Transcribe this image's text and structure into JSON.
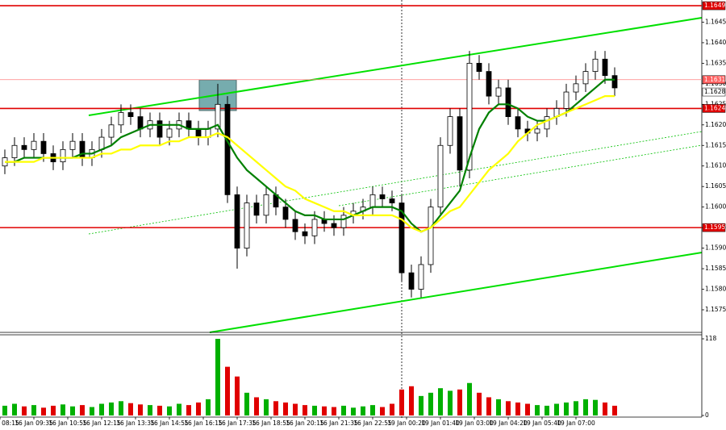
{
  "chart_data": {
    "type": "candlestick",
    "open": [
      1.161,
      1.1612,
      1.1615,
      1.1614,
      1.1616,
      1.1613,
      1.1611,
      1.1614,
      1.1616,
      1.1612,
      1.1614,
      1.1617,
      1.162,
      1.1623,
      1.1622,
      1.1619,
      1.1621,
      1.1617,
      1.1619,
      1.1621,
      1.1619,
      1.1617,
      1.1619,
      1.1625,
      1.1603,
      1.159,
      1.1601,
      1.1598,
      1.1603,
      1.16,
      1.1597,
      1.1594,
      1.1593,
      1.1597,
      1.1596,
      1.1595,
      1.1598,
      1.1599,
      1.16,
      1.1603,
      1.1602,
      1.1601,
      1.1584,
      1.158,
      1.1586,
      1.16,
      1.1615,
      1.1622,
      1.1609,
      1.1635,
      1.1633,
      1.1627,
      1.1629,
      1.1622,
      1.1619,
      1.1618,
      1.1619,
      1.1622,
      1.1624,
      1.1628,
      1.163,
      1.1633,
      1.1636,
      1.1632
    ],
    "high": [
      1.1614,
      1.1617,
      1.1617,
      1.1618,
      1.1618,
      1.1615,
      1.1616,
      1.1618,
      1.1618,
      1.1616,
      1.1619,
      1.1622,
      1.1625,
      1.1625,
      1.1624,
      1.1623,
      1.1623,
      1.1621,
      1.1623,
      1.1623,
      1.1621,
      1.1621,
      1.163,
      1.1627,
      1.1605,
      1.1603,
      1.1603,
      1.1605,
      1.1605,
      1.1602,
      1.1599,
      1.1596,
      1.1599,
      1.1599,
      1.1598,
      1.16,
      1.1601,
      1.1602,
      1.1605,
      1.1605,
      1.1604,
      1.1603,
      1.1586,
      1.1588,
      1.1602,
      1.1617,
      1.1624,
      1.1624,
      1.1638,
      1.1637,
      1.1635,
      1.1631,
      1.1631,
      1.1624,
      1.1621,
      1.1621,
      1.1624,
      1.1626,
      1.163,
      1.1632,
      1.1635,
      1.1638,
      1.1638,
      1.1634
    ],
    "low": [
      1.1608,
      1.161,
      1.1612,
      1.1612,
      1.1611,
      1.1609,
      1.1609,
      1.1612,
      1.161,
      1.161,
      1.1612,
      1.1615,
      1.1618,
      1.162,
      1.1617,
      1.1617,
      1.1615,
      1.1615,
      1.1617,
      1.1617,
      1.1615,
      1.1615,
      1.1617,
      1.1601,
      1.1585,
      1.1588,
      1.1596,
      1.1596,
      1.1598,
      1.1595,
      1.1592,
      1.1591,
      1.1591,
      1.1594,
      1.1593,
      1.1593,
      1.1596,
      1.1597,
      1.1598,
      1.16,
      1.1599,
      1.1582,
      1.1578,
      1.1578,
      1.1584,
      1.1598,
      1.1613,
      1.1605,
      1.1607,
      1.1631,
      1.1625,
      1.1625,
      1.162,
      1.1617,
      1.1616,
      1.1616,
      1.1617,
      1.162,
      1.1622,
      1.1626,
      1.1628,
      1.1631,
      1.163,
      1.1627
    ],
    "close": [
      1.1612,
      1.1615,
      1.1614,
      1.1616,
      1.1613,
      1.1611,
      1.1614,
      1.1616,
      1.1612,
      1.1614,
      1.1617,
      1.162,
      1.1623,
      1.1622,
      1.1619,
      1.1621,
      1.1617,
      1.1619,
      1.1621,
      1.1619,
      1.1617,
      1.1619,
      1.1625,
      1.1603,
      1.159,
      1.1601,
      1.1598,
      1.1603,
      1.16,
      1.1597,
      1.1594,
      1.1593,
      1.1597,
      1.1596,
      1.1595,
      1.1598,
      1.1599,
      1.16,
      1.1603,
      1.1602,
      1.1601,
      1.1584,
      1.158,
      1.1586,
      1.16,
      1.1615,
      1.1622,
      1.1609,
      1.1635,
      1.1633,
      1.1627,
      1.1629,
      1.1622,
      1.1619,
      1.1618,
      1.1619,
      1.1622,
      1.1624,
      1.1628,
      1.163,
      1.1633,
      1.1636,
      1.1632,
      1.1629
    ],
    "moving_averages": [
      {
        "color": "#008000",
        "values": [
          1.1611,
          1.1611,
          1.1612,
          1.1612,
          1.1612,
          1.1612,
          1.1612,
          1.1612,
          1.1613,
          1.1613,
          1.1614,
          1.1615,
          1.1617,
          1.1618,
          1.1619,
          1.162,
          1.162,
          1.162,
          1.162,
          1.1619,
          1.1619,
          1.1619,
          1.162,
          1.1616,
          1.1612,
          1.1609,
          1.1607,
          1.1605,
          1.1603,
          1.1601,
          1.1599,
          1.1598,
          1.1598,
          1.1597,
          1.1597,
          1.1597,
          1.1598,
          1.1599,
          1.16,
          1.16,
          1.16,
          1.1599,
          1.1596,
          1.1594,
          1.1595,
          1.1598,
          1.1601,
          1.1604,
          1.1612,
          1.1619,
          1.1623,
          1.1625,
          1.1625,
          1.1624,
          1.1622,
          1.1621,
          1.1621,
          1.1622,
          1.1623,
          1.1625,
          1.1627,
          1.1629,
          1.1631,
          1.1631
        ]
      },
      {
        "color": "#ffff00",
        "values": [
          1.1611,
          1.1611,
          1.1611,
          1.1611,
          1.1612,
          1.1612,
          1.1612,
          1.1612,
          1.1612,
          1.1612,
          1.1613,
          1.1613,
          1.1614,
          1.1614,
          1.1615,
          1.1615,
          1.1615,
          1.1616,
          1.1616,
          1.1617,
          1.1617,
          1.1617,
          1.1618,
          1.1617,
          1.1615,
          1.1613,
          1.1611,
          1.1609,
          1.1607,
          1.1605,
          1.1604,
          1.1602,
          1.1601,
          1.16,
          1.1599,
          1.1599,
          1.1598,
          1.1598,
          1.1598,
          1.1598,
          1.1598,
          1.1597,
          1.1595,
          1.1594,
          1.1595,
          1.1597,
          1.1599,
          1.16,
          1.1603,
          1.1606,
          1.1609,
          1.1611,
          1.1613,
          1.1616,
          1.1618,
          1.162,
          1.1621,
          1.1622,
          1.1623,
          1.1624,
          1.1625,
          1.1626,
          1.1627,
          1.1627
        ]
      }
    ],
    "volume": [
      15,
      18,
      14,
      16,
      12,
      15,
      17,
      14,
      16,
      13,
      18,
      20,
      22,
      19,
      17,
      16,
      15,
      14,
      18,
      16,
      20,
      25,
      118,
      75,
      60,
      35,
      28,
      25,
      22,
      20,
      18,
      16,
      15,
      14,
      13,
      15,
      12,
      14,
      16,
      13,
      18,
      40,
      45,
      30,
      35,
      42,
      38,
      40,
      50,
      35,
      28,
      25,
      22,
      20,
      18,
      16,
      15,
      18,
      20,
      22,
      25,
      24,
      20,
      15
    ],
    "up_color": "#00b000",
    "down_color": "#e00000",
    "ylim": [
      1.15695,
      1.165
    ],
    "yticks": [
      1.1575,
      {
        "value": 1.158,
        "label": "1.1580"
      },
      1.1585,
      {
        "value": 1.159,
        "label": "1.1590"
      },
      1.1595,
      {
        "value": 1.16,
        "label": "1.1600"
      },
      1.1605,
      {
        "value": 1.161,
        "label": "1.1610"
      },
      1.1615,
      {
        "value": 1.162,
        "label": "1.1620"
      },
      1.1625,
      {
        "value": 1.163,
        "label": "1.1630"
      },
      1.1635,
      {
        "value": 1.164,
        "label": "1.1640"
      },
      1.1645
    ],
    "volume_ylim": [
      0,
      118
    ],
    "volume_yticks": [
      118,
      0
    ],
    "levels": [
      1.1649,
      1.1624,
      1.1595
    ],
    "level_color": "#e00000",
    "ask_line": 1.1631,
    "current_price": 1.1628,
    "xticks": [
      {
        "value": -0.5,
        "label": "16 Jan 08:15"
      },
      {
        "value": 3,
        "label": "16 Jan 09:35"
      },
      {
        "value": 6.5,
        "label": "16 Jan 10:55"
      },
      {
        "value": 10,
        "label": "16 Jan 12:15"
      },
      {
        "value": 13.5,
        "label": "16 Jan 13:35"
      },
      {
        "value": 17,
        "label": "16 Jan 14:55"
      },
      {
        "value": 20.5,
        "label": "16 Jan 16:15"
      },
      {
        "value": 24,
        "label": "16 Jan 17:35"
      },
      {
        "value": 27.5,
        "label": "16 Jan 18:55"
      },
      {
        "value": 31,
        "label": "16 Jan 20:15"
      },
      {
        "value": 34.5,
        "label": "16 Jan 21:35"
      },
      {
        "value": 38,
        "label": "16 Jan 22:55"
      },
      {
        "value": 41.5,
        "label": "19 Jan 00:20"
      },
      {
        "value": 45,
        "label": "19 Jan 01:40"
      },
      {
        "value": 48.5,
        "label": "19 Jan 03:00"
      },
      {
        "value": 52,
        "label": "19 Jan 04:20"
      },
      {
        "value": 55.5,
        "label": "19 Jan 05:40"
      },
      {
        "value": 59,
        "label": "19 Jan 07:00"
      }
    ]
  }
}
